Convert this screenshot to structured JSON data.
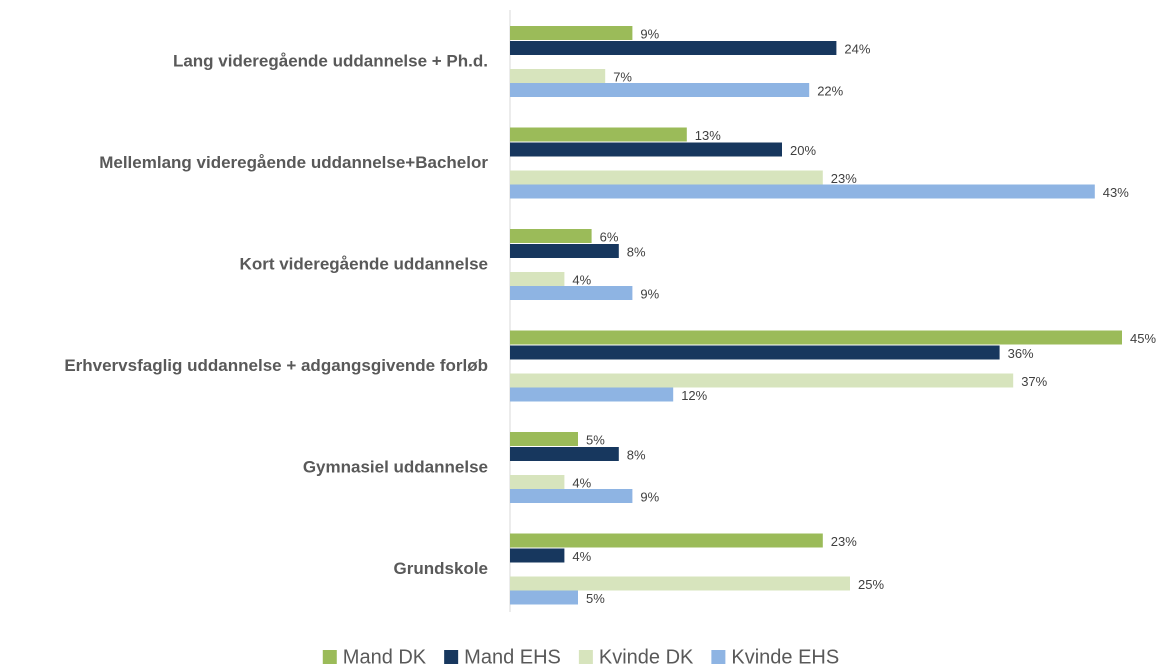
{
  "chart_data": {
    "type": "hbar",
    "categories": [
      "Lang videregående uddannelse + Ph.d.",
      "Mellemlang videregående uddannelse+Bachelor",
      "Kort videregående uddannelse",
      "Erhvervsfaglig uddannelse + adgangsgivende forløb",
      "Gymnasiel uddannelse",
      "Grundskole"
    ],
    "series": [
      {
        "name": "Mand DK",
        "color": "#9bbb59",
        "values": [
          9,
          13,
          6,
          45,
          5,
          23
        ],
        "value_labels": [
          "9%",
          "13%",
          "6%",
          "45%",
          "5%",
          "23%"
        ]
      },
      {
        "name": "Mand EHS",
        "color": "#17375e",
        "values": [
          24,
          20,
          8,
          36,
          8,
          4
        ],
        "value_labels": [
          "24%",
          "20%",
          "8%",
          "36%",
          "8%",
          "4%"
        ]
      },
      {
        "name": "Kvinde DK",
        "color": "#d7e4bd",
        "values": [
          7,
          23,
          4,
          37,
          4,
          25
        ],
        "value_labels": [
          "7%",
          "23%",
          "4%",
          "37%",
          "4%",
          "25%"
        ]
      },
      {
        "name": "Kvinde EHS",
        "color": "#8eb4e3",
        "values": [
          22,
          43,
          9,
          12,
          9,
          5
        ],
        "value_labels": [
          "22%",
          "43%",
          "9%",
          "12%",
          "9%",
          "5%"
        ]
      }
    ],
    "legend": "bottom"
  }
}
